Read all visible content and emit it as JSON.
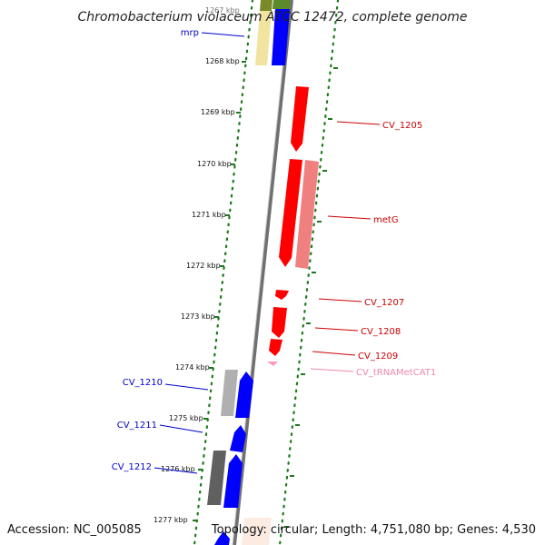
{
  "title": "Chromobacterium violaceum ATCC 12472, complete genome",
  "footer": {
    "accession": "Accession: NC_005085",
    "summary": "Topology: circular; Length: 4,751,080 bp; Genes: 4,530"
  },
  "scale": {
    "unit": "kbp",
    "ticks": [
      "1267 kbp",
      "1268 kbp",
      "1269 kbp",
      "1270 kbp",
      "1271 kbp",
      "1272 kbp",
      "1273 kbp",
      "1274 kbp",
      "1275 kbp",
      "1276 kbp",
      "1277 kbp"
    ]
  },
  "colors": {
    "backbone": "#808080",
    "forward_cds": "#ff0000",
    "forward_feature": "#f08080",
    "reverse_cds": "#0000ff",
    "reverse_feature": "#b0b0b0",
    "trna": "#ff99bb",
    "tick": "#1a7a1a",
    "label_forward": "#cc0000",
    "label_reverse": "#0000cc",
    "label_trna": "#ee88aa"
  },
  "labels": {
    "forward": [
      "CV_1205",
      "metG",
      "CV_1207",
      "CV_1208",
      "CV_1209",
      "CV_tRNAMetCAT1"
    ],
    "reverse": [
      "mrp",
      "CV_1210",
      "CV_1211",
      "CV_1212"
    ]
  }
}
